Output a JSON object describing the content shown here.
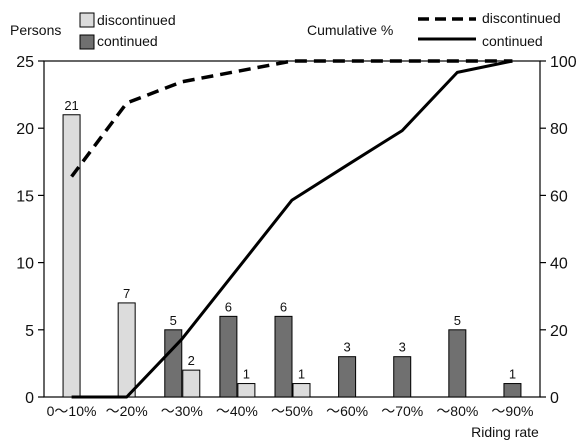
{
  "chart_data": {
    "type": "bar",
    "categories": [
      "0～10%",
      "～20%",
      "～30%",
      "～40%",
      "～50%",
      "～60%",
      "～70%",
      "～80%",
      "～90%"
    ],
    "series": [
      {
        "name": "discontinued",
        "values": [
          21,
          7,
          2,
          1,
          1,
          0,
          0,
          0,
          0
        ],
        "color": "#dcdcdc"
      },
      {
        "name": "continued",
        "values": [
          0,
          0,
          5,
          6,
          6,
          3,
          3,
          5,
          1
        ],
        "color": "#707070"
      }
    ],
    "cumulative": [
      {
        "name": "discontinued",
        "style": "dashed",
        "values": [
          65.6,
          87.5,
          93.8,
          96.9,
          100,
          100,
          100,
          100,
          100
        ]
      },
      {
        "name": "continued",
        "style": "solid",
        "values": [
          0,
          0,
          17.2,
          37.9,
          58.6,
          69.0,
          79.3,
          96.6,
          100
        ]
      }
    ],
    "data_labels": {
      "discontinued": [
        "21",
        "7",
        "2",
        "1",
        "1"
      ],
      "continued": [
        "5",
        "6",
        "6",
        "3",
        "3",
        "5",
        "1"
      ]
    },
    "y_left": {
      "label": "Persons",
      "ylim": [
        0,
        25
      ],
      "ticks": [
        "0",
        "5",
        "10",
        "15",
        "20",
        "25"
      ]
    },
    "y_right": {
      "label": "Cumulative %",
      "ylim": [
        0,
        100
      ],
      "ticks": [
        "0",
        "20",
        "40",
        "60",
        "80",
        "100"
      ]
    },
    "xlabel": "Riding rate",
    "legend_bars": {
      "discontinued": "discontinued",
      "continued": "continued"
    },
    "legend_lines": {
      "discontinued": "discontinued",
      "continued": "continued"
    }
  }
}
